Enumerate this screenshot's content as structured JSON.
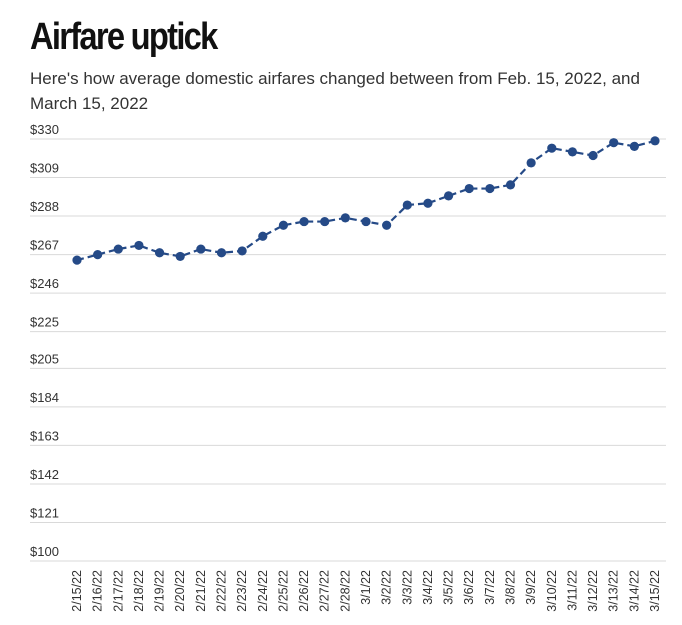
{
  "header": {
    "title": "Airfare uptick",
    "subtitle": "Here's how average domestic airfares changed between from Feb. 15, 2022, and March 15, 2022"
  },
  "colors": {
    "series": "#254a87",
    "grid": "#d9d9d9"
  },
  "chart_data": {
    "type": "line",
    "title": "Airfare uptick",
    "subtitle": "Here's how average domestic airfares changed between from Feb. 15, 2022, and March 15, 2022",
    "xlabel": "",
    "ylabel": "",
    "ylim": [
      100,
      330
    ],
    "yticks": [
      100,
      121,
      142,
      163,
      184,
      205,
      225,
      246,
      267,
      288,
      309,
      330
    ],
    "ytick_labels": [
      "$100",
      "$121",
      "$142",
      "$163",
      "$184",
      "$205",
      "$225",
      "$246",
      "$267",
      "$288",
      "$309",
      "$330"
    ],
    "grid": true,
    "legend": "none",
    "x": [
      "2/15/22",
      "2/16/22",
      "2/17/22",
      "2/18/22",
      "2/19/22",
      "2/20/22",
      "2/21/22",
      "2/22/22",
      "2/23/22",
      "2/24/22",
      "2/25/22",
      "2/26/22",
      "2/27/22",
      "2/28/22",
      "3/1/22",
      "3/2/22",
      "3/3/22",
      "3/4/22",
      "3/5/22",
      "3/6/22",
      "3/7/22",
      "3/8/22",
      "3/9/22",
      "3/10/22",
      "3/11/22",
      "3/12/22",
      "3/13/22",
      "3/14/22",
      "3/15/22"
    ],
    "series": [
      {
        "values": [
          264,
          267,
          270,
          272,
          268,
          266,
          270,
          268,
          269,
          277,
          283,
          285,
          285,
          287,
          285,
          283,
          294,
          295,
          299,
          303,
          303,
          305,
          317,
          325,
          323,
          321,
          328,
          326,
          329
        ]
      }
    ]
  }
}
